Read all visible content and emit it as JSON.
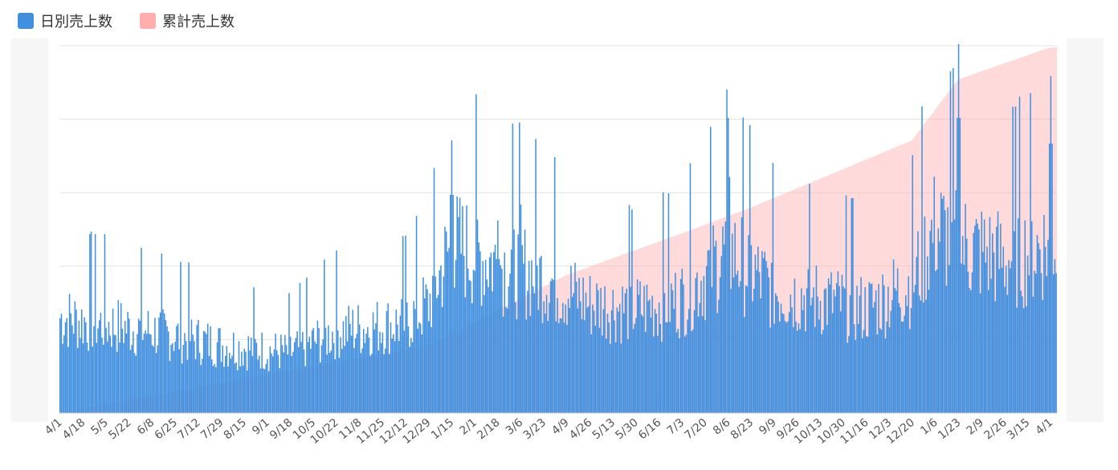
{
  "colors": {
    "daily": "#418fde",
    "cumulative": "#ffadad",
    "grid": "#e3e3e3",
    "tick_text": "#555555"
  },
  "chart_data": {
    "type": "bar+area",
    "legend": [
      {
        "key": "daily",
        "label": "日別売上数",
        "color": "#418fde"
      },
      {
        "key": "cumulative",
        "label": "累計売上数",
        "color": "#ffadad"
      }
    ],
    "x_start_date": "4/1",
    "x_tick_labels": [
      "4/1",
      "4/18",
      "5/5",
      "5/22",
      "6/8",
      "6/25",
      "7/12",
      "7/29",
      "8/15",
      "9/1",
      "9/18",
      "10/5",
      "10/22",
      "11/8",
      "11/25",
      "12/12",
      "12/29",
      "1/15",
      "2/1",
      "2/18",
      "3/6",
      "3/23",
      "4/9",
      "4/26",
      "5/13",
      "5/30",
      "6/16",
      "7/3",
      "7/20",
      "8/6",
      "8/23",
      "9/9",
      "9/26",
      "10/13",
      "10/30",
      "11/16",
      "12/3",
      "12/20",
      "1/6",
      "1/23",
      "2/9",
      "2/26",
      "3/15",
      "4/1"
    ],
    "tick_interval_days": 17,
    "day_count": 736,
    "y_axis_labels_hidden": true,
    "grid_lines": 5,
    "daily_anchor_points": [
      {
        "x": "4/1",
        "y": 0.35
      },
      {
        "x": "6/8",
        "y": 0.3
      },
      {
        "x": "7/29",
        "y": 0.25
      },
      {
        "x": "9/18",
        "y": 0.22
      },
      {
        "x": "10/22",
        "y": 0.3
      },
      {
        "x": "12/12",
        "y": 0.33
      },
      {
        "x": "12/29",
        "y": 0.4
      },
      {
        "x": "1/15",
        "y": 0.62
      },
      {
        "x": "2/18",
        "y": 0.55
      },
      {
        "x": "3/23",
        "y": 0.5
      },
      {
        "x": "4/26",
        "y": 0.4
      },
      {
        "x": "5/30",
        "y": 0.38
      },
      {
        "x": "7/3",
        "y": 0.42
      },
      {
        "x": "8/6",
        "y": 0.6
      },
      {
        "x": "8/23",
        "y": 0.52
      },
      {
        "x": "9/9",
        "y": 0.45
      },
      {
        "x": "10/30",
        "y": 0.4
      },
      {
        "x": "11/16",
        "y": 0.38
      },
      {
        "x": "12/20",
        "y": 0.48
      },
      {
        "x": "1/6",
        "y": 0.68
      },
      {
        "x": "1/23",
        "y": 0.62
      },
      {
        "x": "2/26",
        "y": 0.56
      },
      {
        "x": "4/1",
        "y": 0.62
      }
    ],
    "daily_peaks": [
      {
        "x": "1/15",
        "y": 0.85
      },
      {
        "x": "2/18",
        "y": 0.6
      },
      {
        "x": "3/6",
        "y": 0.65
      },
      {
        "x": "8/6",
        "y": 0.92
      },
      {
        "x": "1/23",
        "y": 1.15
      },
      {
        "x": "4/1",
        "y": 1.05
      }
    ],
    "cumulative_anchor_points": [
      {
        "x": "4/1",
        "y": 0.0
      },
      {
        "x": "9/1",
        "y": 0.12
      },
      {
        "x": "12/29",
        "y": 0.21
      },
      {
        "x": "4/9",
        "y": 0.43
      },
      {
        "x": "7/3",
        "y": 0.56
      },
      {
        "x": "8/23",
        "y": 0.64
      },
      {
        "x": "12/20",
        "y": 0.85
      },
      {
        "x": "1/23",
        "y": 1.04
      },
      {
        "x": "4/1",
        "y": 1.14
      }
    ]
  }
}
